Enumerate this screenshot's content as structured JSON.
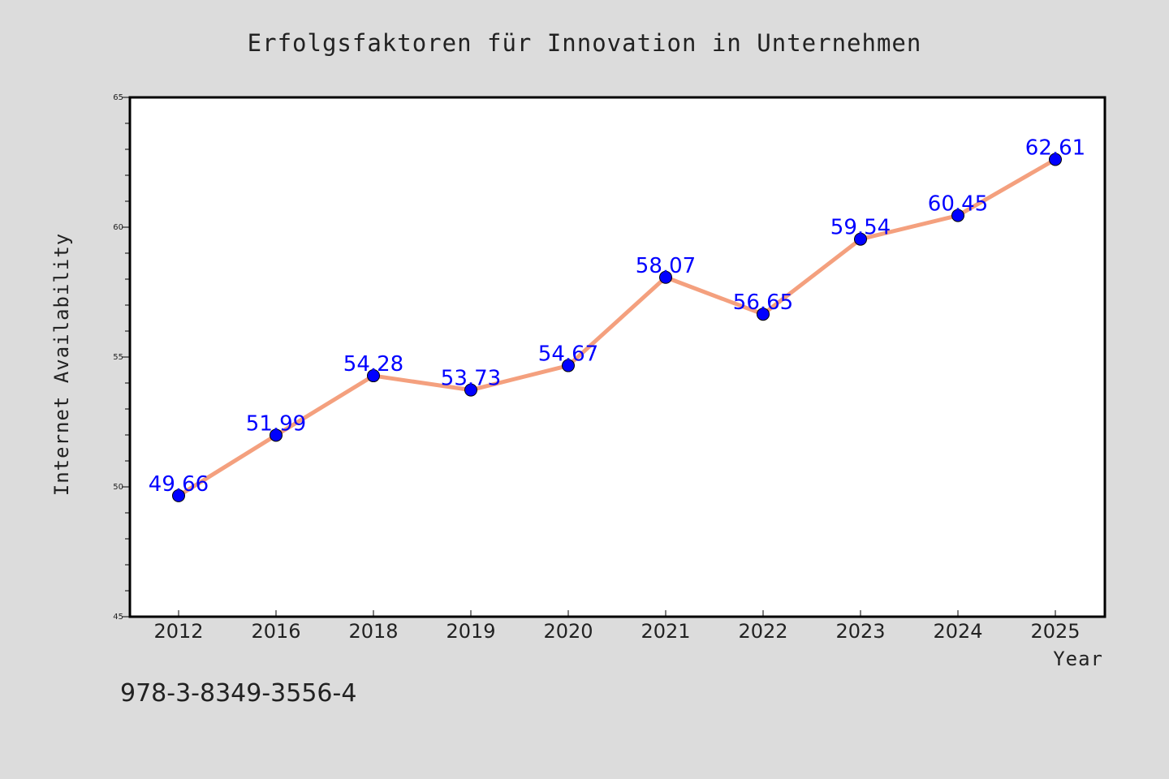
{
  "chart_data": {
    "type": "line",
    "title": "Erfolgsfaktoren für Innovation in Unternehmen",
    "xlabel": "Year",
    "ylabel": "Internet Availability",
    "categories": [
      "2012",
      "2016",
      "2018",
      "2019",
      "2020",
      "2021",
      "2022",
      "2023",
      "2024",
      "2025"
    ],
    "series": [
      {
        "values": [
          49.66,
          51.99,
          54.28,
          53.73,
          54.67,
          58.07,
          56.65,
          59.54,
          60.45,
          62.61
        ],
        "labels": [
          "49.66",
          "51.99",
          "54.28",
          "53.73",
          "54.67",
          "58.07",
          "56.65",
          "59.54",
          "60.45",
          "62.61"
        ]
      }
    ],
    "ylim": [
      45,
      65
    ],
    "yticks": [
      "45",
      "50",
      "55",
      "60",
      "65"
    ],
    "grid": false,
    "legend": "none",
    "line_color": "#f4a07e",
    "marker_color": "#0000ff",
    "label_color": "#0000ff"
  },
  "footer": {
    "isbn": "978-3-8349-3556-4"
  }
}
